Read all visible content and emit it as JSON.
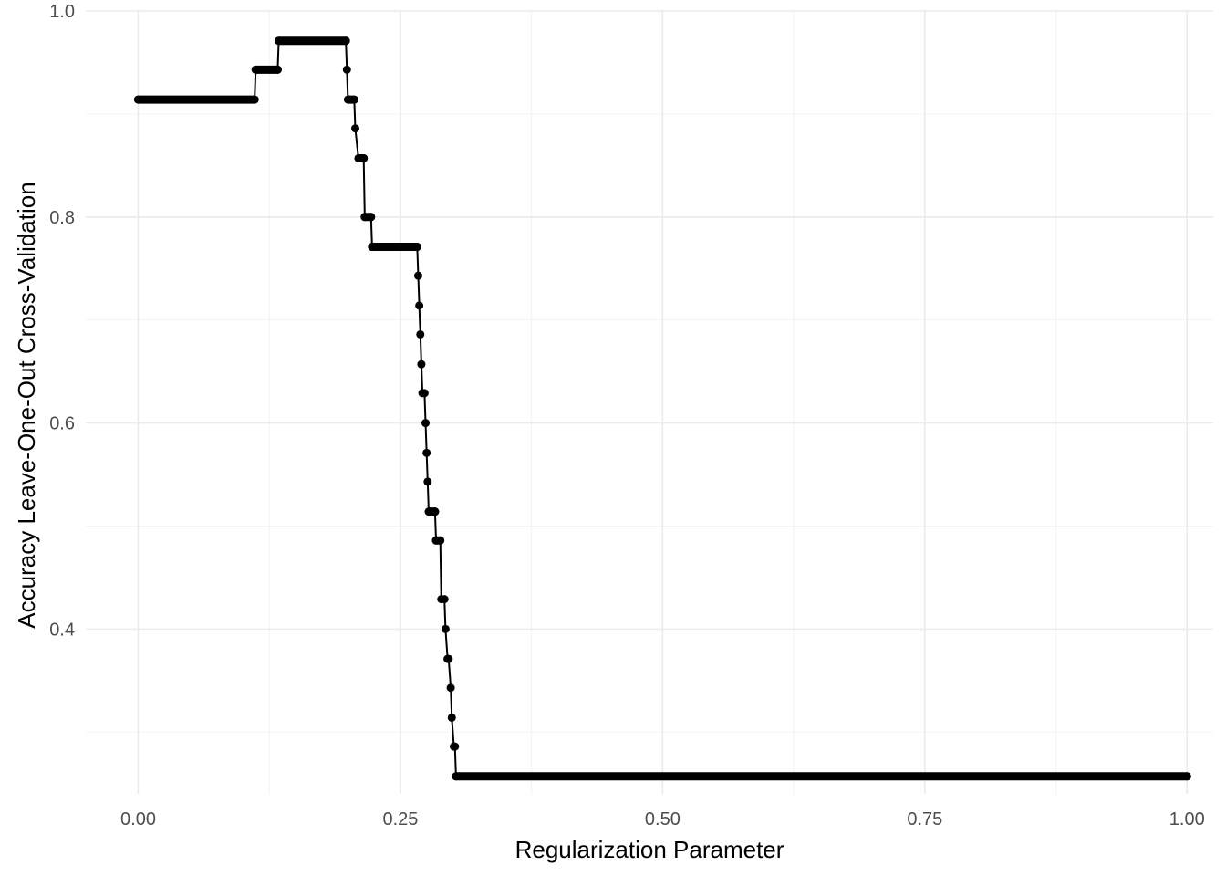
{
  "chart_data": {
    "type": "line",
    "title": "",
    "xlabel": "Regularization Parameter",
    "ylabel": "Accuracy Leave-One-Out Cross-Validation",
    "xlim": [
      -0.05,
      1.025
    ],
    "ylim": [
      0.24,
      1.0
    ],
    "grid": true,
    "legend": "none",
    "x_ticks": [
      {
        "value": 0.0,
        "label": "0.00"
      },
      {
        "value": 0.25,
        "label": "0.25"
      },
      {
        "value": 0.5,
        "label": "0.50"
      },
      {
        "value": 0.75,
        "label": "0.75"
      },
      {
        "value": 1.0,
        "label": "1.00"
      }
    ],
    "y_ticks": [
      {
        "value": 0.4,
        "label": "0.4"
      },
      {
        "value": 0.6,
        "label": "0.6"
      },
      {
        "value": 0.8,
        "label": "0.8"
      },
      {
        "value": 1.0,
        "label": "1.0"
      }
    ],
    "x_minor": [
      0.125,
      0.375,
      0.625,
      0.875
    ],
    "y_minor": [
      0.3,
      0.5,
      0.7,
      0.9
    ],
    "line_color": "#000000",
    "series": [
      {
        "x": [
          0.0,
          0.111,
          0.112,
          0.133,
          0.134,
          0.198,
          0.199,
          0.2,
          0.201,
          0.206,
          0.207,
          0.21,
          0.211,
          0.215,
          0.216,
          0.222,
          0.223,
          0.266,
          0.267,
          0.268,
          0.269,
          0.27,
          0.271,
          0.273,
          0.274,
          0.275,
          0.276,
          0.277,
          0.278,
          0.283,
          0.284,
          0.288,
          0.289,
          0.292,
          0.293,
          0.295,
          0.296,
          0.298,
          0.299,
          0.301,
          0.302,
          0.303,
          1.0
        ],
        "y": [
          0.914,
          0.914,
          0.943,
          0.943,
          0.971,
          0.971,
          0.943,
          0.914,
          0.914,
          0.914,
          0.886,
          0.857,
          0.857,
          0.857,
          0.8,
          0.8,
          0.771,
          0.771,
          0.743,
          0.714,
          0.686,
          0.657,
          0.629,
          0.629,
          0.6,
          0.571,
          0.543,
          0.514,
          0.514,
          0.514,
          0.486,
          0.486,
          0.429,
          0.429,
          0.4,
          0.371,
          0.371,
          0.343,
          0.314,
          0.286,
          0.286,
          0.257,
          0.257
        ]
      }
    ]
  }
}
